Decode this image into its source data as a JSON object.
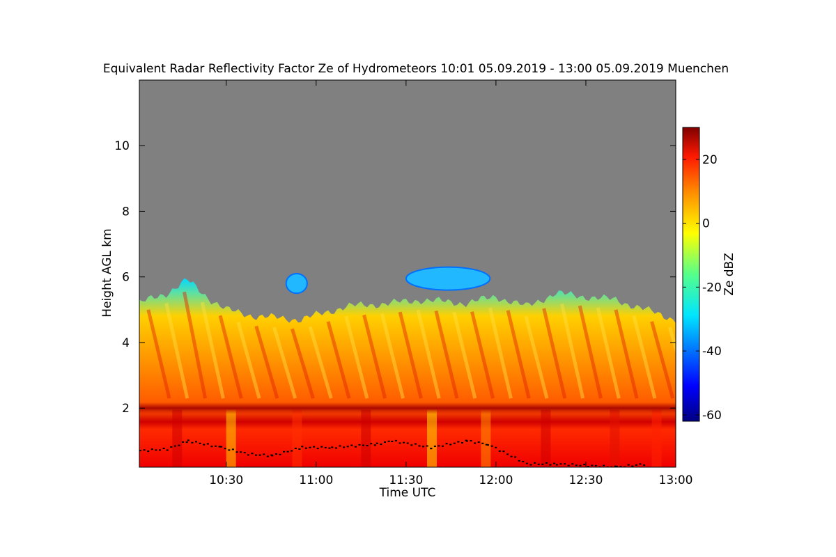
{
  "chart_data": {
    "type": "heatmap",
    "title": "Equivalent Radar Reflectivity Factor Ze of Hydrometeors   10:01 05.09.2019 - 13:00 05.09.2019 Muenchen",
    "xlabel": "Time UTC",
    "ylabel": "Height AGL km",
    "x_tick_labels": [
      "10:30",
      "11:00",
      "11:30",
      "12:00",
      "12:30",
      "13:00"
    ],
    "x_tick_minutes": [
      30,
      60,
      90,
      120,
      150,
      180
    ],
    "xlim_minutes": [
      1,
      180
    ],
    "y_tick_labels": [
      "2",
      "4",
      "6",
      "8",
      "10"
    ],
    "y_ticks": [
      2,
      4,
      6,
      8,
      10
    ],
    "ylim": [
      0.2,
      12.0
    ],
    "colorbar": {
      "label": "Ze dBZ",
      "tick_labels": [
        "20",
        "0",
        "-20",
        "-40",
        "-60"
      ],
      "ticks": [
        20,
        0,
        -20,
        -40,
        -60
      ],
      "range": [
        -62,
        30
      ]
    },
    "features": {
      "cloud_top_km": [
        [
          1,
          5.2
        ],
        [
          10,
          5.5
        ],
        [
          17,
          5.9
        ],
        [
          25,
          5.3
        ],
        [
          30,
          5.0
        ],
        [
          40,
          4.8
        ],
        [
          55,
          4.7
        ],
        [
          70,
          5.1
        ],
        [
          85,
          5.2
        ],
        [
          95,
          5.3
        ],
        [
          110,
          5.2
        ],
        [
          120,
          5.4
        ],
        [
          130,
          5.1
        ],
        [
          140,
          5.5
        ],
        [
          150,
          5.4
        ],
        [
          160,
          5.3
        ],
        [
          170,
          5.0
        ],
        [
          180,
          4.7
        ]
      ],
      "melting_layer_km": 2.0,
      "upper_cloud_patches": [
        {
          "t_start": 50,
          "t_end": 57,
          "base_km": 5.5,
          "top_km": 6.1
        },
        {
          "t_start": 90,
          "t_end": 118,
          "base_km": 5.6,
          "top_km": 6.3
        }
      ],
      "cloud_base_points": [
        [
          1,
          0.7
        ],
        [
          10,
          0.75
        ],
        [
          17,
          1.0
        ],
        [
          28,
          0.8
        ],
        [
          37,
          0.6
        ],
        [
          45,
          0.55
        ],
        [
          55,
          0.8
        ],
        [
          65,
          0.8
        ],
        [
          80,
          0.9
        ],
        [
          85,
          1.0
        ],
        [
          98,
          0.8
        ],
        [
          110,
          1.0
        ],
        [
          117,
          0.9
        ],
        [
          130,
          0.3
        ],
        [
          140,
          0.3
        ],
        [
          160,
          0.2
        ],
        [
          170,
          0.3
        ]
      ]
    }
  }
}
